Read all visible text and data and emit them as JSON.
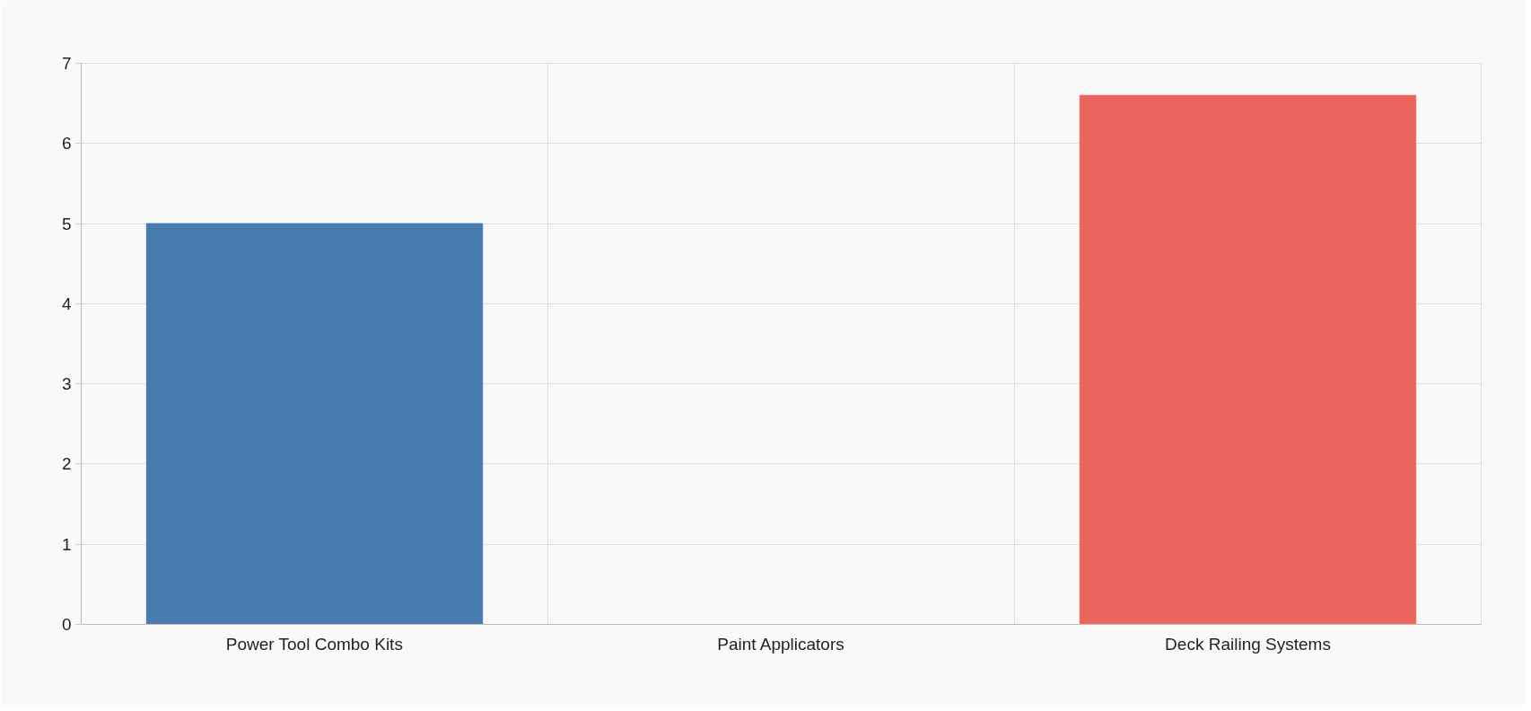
{
  "chart_data": {
    "type": "bar",
    "categories": [
      "Power Tool Combo Kits",
      "Paint Applicators",
      "Deck Railing Systems"
    ],
    "values": [
      5,
      0,
      6.6
    ],
    "colors": [
      "#457cad",
      "#457cad",
      "#ec645e"
    ],
    "ylim": [
      0,
      7
    ],
    "yticks": [
      0,
      1,
      2,
      3,
      4,
      5,
      6,
      7
    ],
    "grid": true
  }
}
